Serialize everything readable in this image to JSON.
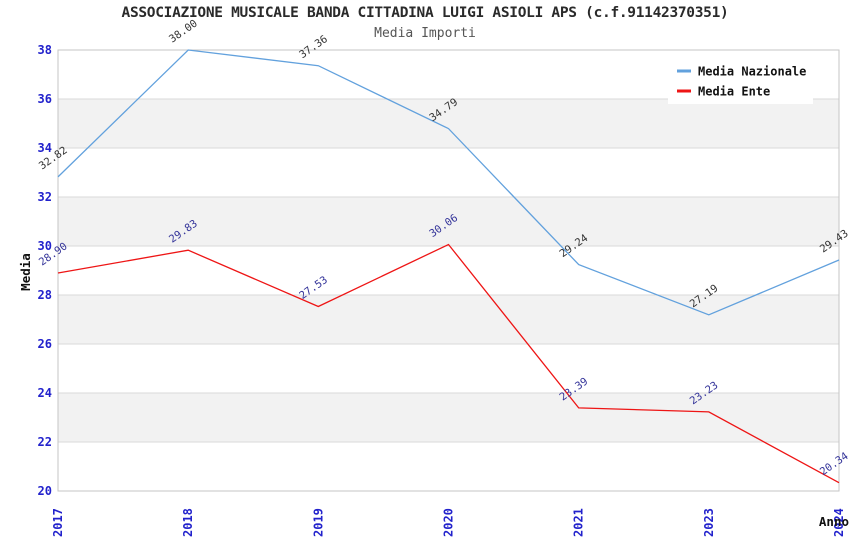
{
  "header": {
    "title": "ASSOCIAZIONE MUSICALE BANDA CITTADINA LUIGI ASIOLI APS (c.f.91142370351)",
    "subtitle": "Media Importi"
  },
  "chart_data": {
    "type": "line",
    "title": "ASSOCIAZIONE MUSICALE BANDA CITTADINA LUIGI ASIOLI APS (c.f.91142370351)",
    "subtitle": "Media Importi",
    "categories": [
      "2017",
      "2018",
      "2019",
      "2020",
      "2021",
      "2023",
      "2024"
    ],
    "xlabel": "Anno",
    "ylabel": "Media",
    "ylim": [
      20,
      38
    ],
    "ytick_step": 2,
    "yticks": [
      20,
      22,
      24,
      26,
      28,
      30,
      32,
      34,
      36,
      38
    ],
    "grid": "horizontal-bands-alternating",
    "legend_position": "top-right-inside",
    "series": [
      {
        "name": "Media Nazionale",
        "color": "#62a1dd",
        "label_color": "#333333",
        "values": [
          32.82,
          38.0,
          37.36,
          34.79,
          29.24,
          27.19,
          29.43
        ]
      },
      {
        "name": "Media Ente",
        "color": "#ee1515",
        "label_color": "#333399",
        "values": [
          28.9,
          29.83,
          27.53,
          30.06,
          23.39,
          23.23,
          20.34
        ]
      }
    ],
    "colors": {
      "tick_label": "#2222cc",
      "band_gray": "#f2f2f2",
      "gridline": "#d9d9d9",
      "plot_border": "#c6c6c6",
      "subtitle_text": "#555555",
      "axis_label_text": "#111111",
      "legend_text": "#111111",
      "legend_bg": "#ffffff"
    }
  }
}
